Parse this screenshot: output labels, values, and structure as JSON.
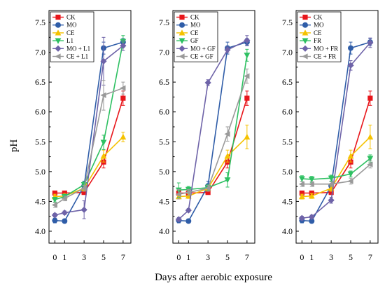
{
  "y_axis_label": "pH",
  "x_axis_label": "Days after aerobic exposure",
  "series_colors": {
    "CK": "#e8161b",
    "MO": "#2f5da8",
    "CE": "#f5c200",
    "treatment": "#2ec062",
    "MO_combo": "#6e63a8",
    "CE_combo": "#9a9a9a"
  },
  "chart_data": [
    {
      "type": "line",
      "panel": "left",
      "x": [
        0,
        1,
        3,
        5,
        7
      ],
      "xticks": [
        "0",
        "1",
        "3",
        "5",
        "7"
      ],
      "ylim": [
        3.8,
        7.7
      ],
      "yticks": [
        "4.0",
        "4.5",
        "5.0",
        "5.5",
        "6.0",
        "6.5",
        "7.0",
        "7.5"
      ],
      "grid": false,
      "legend_position": "top-left",
      "series": [
        {
          "name": "CK",
          "values": [
            4.64,
            4.64,
            4.65,
            5.16,
            6.23
          ],
          "err": [
            0.03,
            0.03,
            0.03,
            0.1,
            0.12
          ],
          "color": "#e8161b",
          "marker": "square"
        },
        {
          "name": "MO",
          "values": [
            4.18,
            4.17,
            4.76,
            7.07,
            7.17
          ],
          "err": [
            0.04,
            0.03,
            0.08,
            0.1,
            0.06
          ],
          "color": "#2f5da8",
          "marker": "circle"
        },
        {
          "name": "CE",
          "values": [
            4.58,
            4.59,
            4.72,
            5.26,
            5.58
          ],
          "err": [
            0.04,
            0.04,
            0.05,
            0.1,
            0.08
          ],
          "color": "#f5c200",
          "marker": "triangle-up"
        },
        {
          "name": "L1",
          "values": [
            4.53,
            4.58,
            4.78,
            5.49,
            7.18
          ],
          "err": [
            0.04,
            0.04,
            0.05,
            0.12,
            0.1
          ],
          "color": "#2ec062",
          "marker": "triangle-down"
        },
        {
          "name": "MO + L1",
          "values": [
            4.27,
            4.31,
            4.36,
            6.85,
            7.11
          ],
          "err": [
            0.03,
            0.03,
            0.15,
            0.4,
            0.08
          ],
          "color": "#6e63a8",
          "marker": "diamond"
        },
        {
          "name": "CE + L1",
          "values": [
            4.44,
            4.55,
            4.72,
            6.28,
            6.4
          ],
          "err": [
            0.04,
            0.04,
            0.05,
            0.25,
            0.1
          ],
          "color": "#9a9a9a",
          "marker": "left-triangle"
        }
      ]
    },
    {
      "type": "line",
      "panel": "middle",
      "x": [
        0,
        1,
        3,
        5,
        7
      ],
      "xticks": [
        "0",
        "1",
        "3",
        "5",
        "7"
      ],
      "ylim": [
        3.8,
        7.7
      ],
      "yticks": [
        "4.0",
        "4.5",
        "5.0",
        "5.5",
        "6.0",
        "6.5",
        "7.0",
        "7.5"
      ],
      "grid": false,
      "legend_position": "top-left",
      "series": [
        {
          "name": "CK",
          "values": [
            4.64,
            4.64,
            4.65,
            5.16,
            6.23
          ],
          "err": [
            0.03,
            0.03,
            0.03,
            0.1,
            0.12
          ],
          "color": "#e8161b",
          "marker": "square"
        },
        {
          "name": "MO",
          "values": [
            4.18,
            4.17,
            4.76,
            7.07,
            7.17
          ],
          "err": [
            0.04,
            0.03,
            0.08,
            0.1,
            0.06
          ],
          "color": "#2f5da8",
          "marker": "circle"
        },
        {
          "name": "CE",
          "values": [
            4.58,
            4.59,
            4.72,
            5.26,
            5.58
          ],
          "err": [
            0.04,
            0.04,
            0.05,
            0.1,
            0.2
          ],
          "color": "#f5c200",
          "marker": "triangle-up"
        },
        {
          "name": "GF",
          "values": [
            4.69,
            4.7,
            4.73,
            4.86,
            6.95
          ],
          "err": [
            0.12,
            0.05,
            0.05,
            0.12,
            0.1
          ],
          "color": "#2ec062",
          "marker": "triangle-down"
        },
        {
          "name": "MO + GF",
          "values": [
            4.2,
            4.35,
            6.49,
            7.04,
            7.2
          ],
          "err": [
            0.03,
            0.03,
            0.05,
            0.05,
            0.08
          ],
          "color": "#6e63a8",
          "marker": "diamond"
        },
        {
          "name": "CE + GF",
          "values": [
            4.62,
            4.65,
            4.72,
            5.63,
            6.6
          ],
          "err": [
            0.08,
            0.05,
            0.05,
            0.12,
            0.12
          ],
          "color": "#9a9a9a",
          "marker": "left-triangle"
        }
      ]
    },
    {
      "type": "line",
      "panel": "right",
      "x": [
        0,
        1,
        3,
        5,
        7
      ],
      "xticks": [
        "0",
        "1",
        "3",
        "5",
        "7"
      ],
      "ylim": [
        3.8,
        7.7
      ],
      "yticks": [
        "4.0",
        "4.5",
        "5.0",
        "5.5",
        "6.0",
        "6.5",
        "7.0",
        "7.5"
      ],
      "grid": false,
      "legend_position": "top-left",
      "series": [
        {
          "name": "CK",
          "values": [
            4.64,
            4.64,
            4.65,
            5.16,
            6.23
          ],
          "err": [
            0.03,
            0.03,
            0.03,
            0.1,
            0.12
          ],
          "color": "#e8161b",
          "marker": "square"
        },
        {
          "name": "MO",
          "values": [
            4.18,
            4.17,
            4.76,
            7.07,
            7.17
          ],
          "err": [
            0.04,
            0.03,
            0.08,
            0.1,
            0.06
          ],
          "color": "#2f5da8",
          "marker": "circle"
        },
        {
          "name": "CE",
          "values": [
            4.58,
            4.59,
            4.72,
            5.26,
            5.58
          ],
          "err": [
            0.04,
            0.04,
            0.05,
            0.1,
            0.2
          ],
          "color": "#f5c200",
          "marker": "triangle-up"
        },
        {
          "name": "FR",
          "values": [
            4.88,
            4.87,
            4.89,
            4.96,
            5.22
          ],
          "err": [
            0.05,
            0.05,
            0.05,
            0.05,
            0.06
          ],
          "color": "#2ec062",
          "marker": "triangle-down"
        },
        {
          "name": "MO + FR",
          "values": [
            4.22,
            4.24,
            4.52,
            6.78,
            7.16
          ],
          "err": [
            0.03,
            0.03,
            0.05,
            0.08,
            0.08
          ],
          "color": "#6e63a8",
          "marker": "diamond"
        },
        {
          "name": "CE + FR",
          "values": [
            4.79,
            4.79,
            4.79,
            4.84,
            5.12
          ],
          "err": [
            0.04,
            0.04,
            0.04,
            0.05,
            0.06
          ],
          "color": "#9a9a9a",
          "marker": "left-triangle"
        }
      ]
    }
  ]
}
